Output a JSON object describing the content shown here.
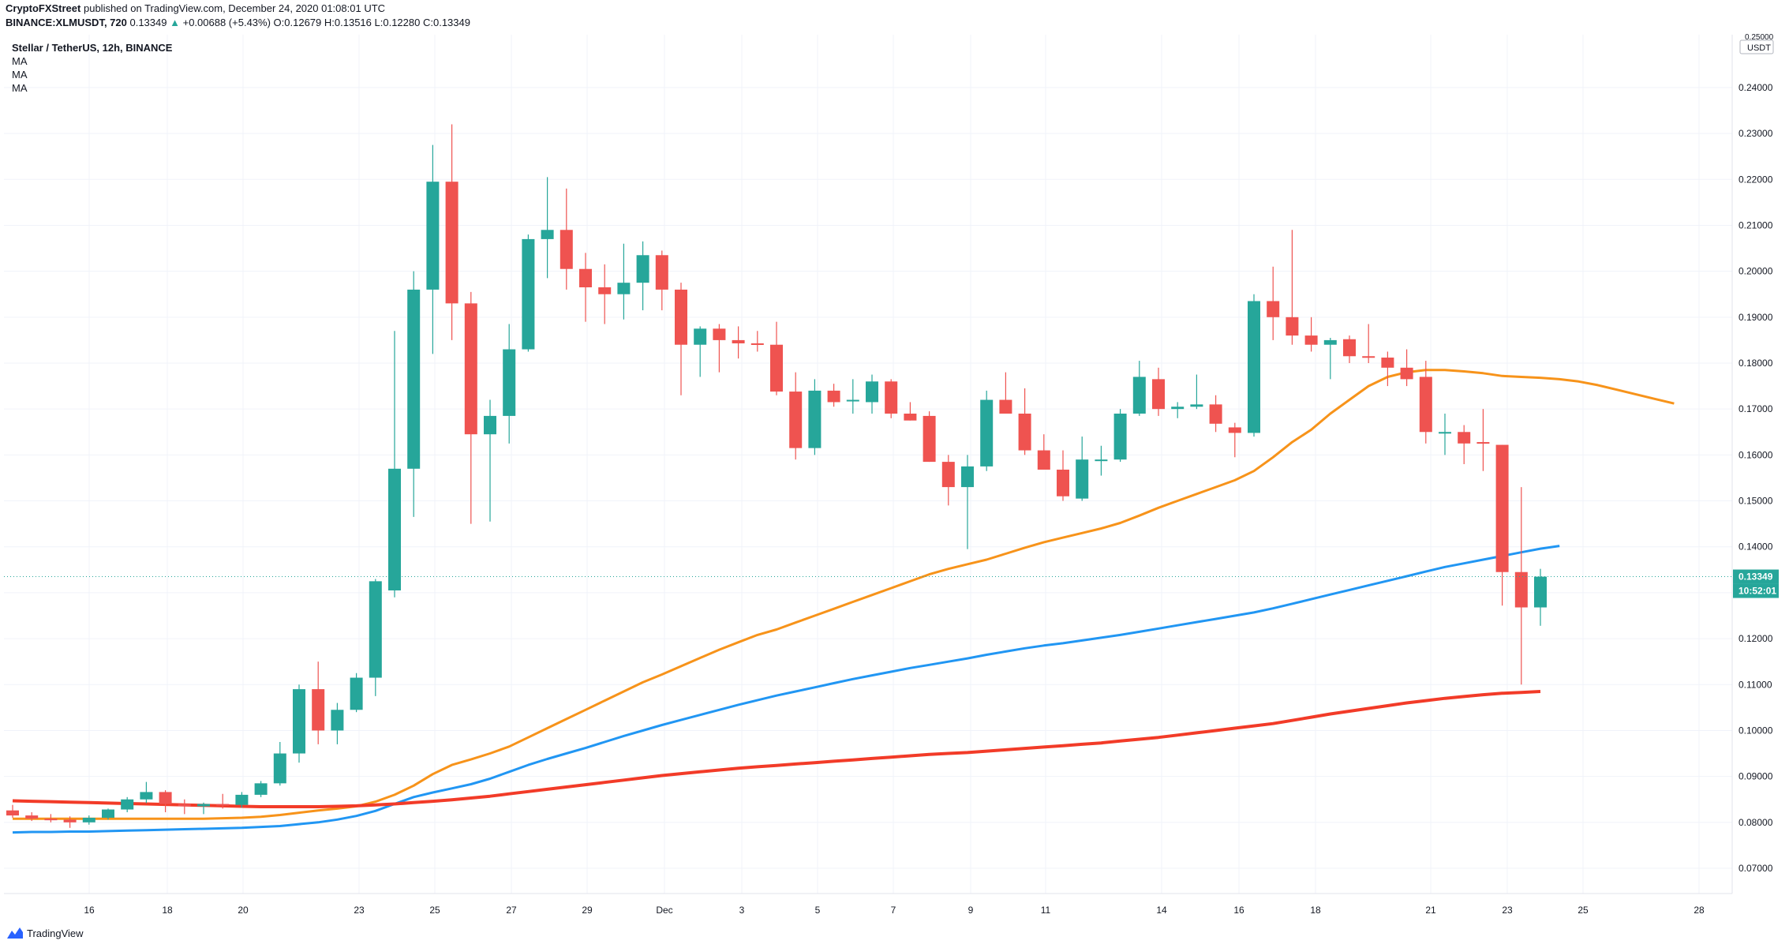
{
  "header": {
    "publisher": "CryptoFXStreet",
    "published_text": "published on TradingView.com, December 24, 2020 01:08:01 UTC",
    "symbol": "BINANCE:XLMUSDT, 720",
    "last": "0.13349",
    "change_arrow": "▲",
    "change": "+0.00688 (+5.43%)",
    "open": "O:0.12679",
    "high": "H:0.13516",
    "low": "L:0.12280",
    "close": "C:0.13349"
  },
  "legend": {
    "title": "Stellar / TetherUS, 12h, BINANCE",
    "ma_labels": [
      "MA",
      "MA",
      "MA"
    ]
  },
  "footer": {
    "brand": "TradingView",
    "logo_icon": "tradingview-logo-icon"
  },
  "colors": {
    "up": "#26a69a",
    "down": "#ef5350",
    "ma_short": "#f7931a",
    "ma_mid": "#2196f3",
    "ma_long": "#f23b28",
    "price_line": "#26a69a",
    "grid": "#f0f3fa"
  },
  "chart_data": {
    "type": "candlestick",
    "x_axis_ticks": [
      "16",
      "18",
      "20",
      "23",
      "25",
      "27",
      "29",
      "Dec",
      "3",
      "5",
      "7",
      "9",
      "11",
      "14",
      "16",
      "18",
      "21",
      "23",
      "25",
      "28"
    ],
    "y_axis_ticks": [
      "0.07000",
      "0.08000",
      "0.09000",
      "0.10000",
      "0.11000",
      "0.12000",
      "0.13000",
      "0.14000",
      "0.15000",
      "0.16000",
      "0.17000",
      "0.18000",
      "0.19000",
      "0.20000",
      "0.21000",
      "0.22000",
      "0.23000",
      "0.24000"
    ],
    "y_axis_unit": "USDT",
    "y_axis_top_tick": "0.25000",
    "ylim": [
      0.0645,
      0.2515
    ],
    "price_label": "0.13349",
    "countdown_label": "10:52:01",
    "candles": [
      {
        "o": 0.0826,
        "h": 0.0838,
        "l": 0.081,
        "c": 0.0815
      },
      {
        "o": 0.0815,
        "h": 0.0822,
        "l": 0.0803,
        "c": 0.0808
      },
      {
        "o": 0.0808,
        "h": 0.0818,
        "l": 0.08,
        "c": 0.0806
      },
      {
        "o": 0.0806,
        "h": 0.0813,
        "l": 0.0788,
        "c": 0.08
      },
      {
        "o": 0.08,
        "h": 0.0815,
        "l": 0.0795,
        "c": 0.081
      },
      {
        "o": 0.081,
        "h": 0.083,
        "l": 0.0806,
        "c": 0.0828
      },
      {
        "o": 0.0828,
        "h": 0.0855,
        "l": 0.0822,
        "c": 0.085
      },
      {
        "o": 0.085,
        "h": 0.0888,
        "l": 0.0842,
        "c": 0.0866
      },
      {
        "o": 0.0866,
        "h": 0.087,
        "l": 0.0822,
        "c": 0.084
      },
      {
        "o": 0.084,
        "h": 0.085,
        "l": 0.0818,
        "c": 0.0835
      },
      {
        "o": 0.0835,
        "h": 0.0843,
        "l": 0.0818,
        "c": 0.084
      },
      {
        "o": 0.084,
        "h": 0.0862,
        "l": 0.083,
        "c": 0.0838
      },
      {
        "o": 0.0838,
        "h": 0.0866,
        "l": 0.0832,
        "c": 0.086
      },
      {
        "o": 0.086,
        "h": 0.089,
        "l": 0.0855,
        "c": 0.0885
      },
      {
        "o": 0.0885,
        "h": 0.0975,
        "l": 0.088,
        "c": 0.095
      },
      {
        "o": 0.095,
        "h": 0.11,
        "l": 0.093,
        "c": 0.109
      },
      {
        "o": 0.109,
        "h": 0.115,
        "l": 0.097,
        "c": 0.1
      },
      {
        "o": 0.1,
        "h": 0.106,
        "l": 0.097,
        "c": 0.1045
      },
      {
        "o": 0.1045,
        "h": 0.1125,
        "l": 0.104,
        "c": 0.1115
      },
      {
        "o": 0.1115,
        "h": 0.133,
        "l": 0.1075,
        "c": 0.1325
      },
      {
        "o": 0.1305,
        "h": 0.187,
        "l": 0.129,
        "c": 0.157
      },
      {
        "o": 0.157,
        "h": 0.2,
        "l": 0.1465,
        "c": 0.196
      },
      {
        "o": 0.196,
        "h": 0.2275,
        "l": 0.182,
        "c": 0.2195
      },
      {
        "o": 0.2195,
        "h": 0.232,
        "l": 0.185,
        "c": 0.193
      },
      {
        "o": 0.193,
        "h": 0.1955,
        "l": 0.145,
        "c": 0.1645
      },
      {
        "o": 0.1645,
        "h": 0.172,
        "l": 0.1455,
        "c": 0.1685
      },
      {
        "o": 0.1685,
        "h": 0.1885,
        "l": 0.1625,
        "c": 0.183
      },
      {
        "o": 0.183,
        "h": 0.208,
        "l": 0.1825,
        "c": 0.207
      },
      {
        "o": 0.207,
        "h": 0.2205,
        "l": 0.1985,
        "c": 0.209
      },
      {
        "o": 0.209,
        "h": 0.218,
        "l": 0.196,
        "c": 0.2005
      },
      {
        "o": 0.2005,
        "h": 0.204,
        "l": 0.189,
        "c": 0.1965
      },
      {
        "o": 0.1965,
        "h": 0.2015,
        "l": 0.1885,
        "c": 0.195
      },
      {
        "o": 0.195,
        "h": 0.206,
        "l": 0.1895,
        "c": 0.1975
      },
      {
        "o": 0.1975,
        "h": 0.2065,
        "l": 0.1915,
        "c": 0.2035
      },
      {
        "o": 0.2035,
        "h": 0.2045,
        "l": 0.1915,
        "c": 0.196
      },
      {
        "o": 0.196,
        "h": 0.1975,
        "l": 0.173,
        "c": 0.184
      },
      {
        "o": 0.184,
        "h": 0.188,
        "l": 0.177,
        "c": 0.1875
      },
      {
        "o": 0.1875,
        "h": 0.1885,
        "l": 0.178,
        "c": 0.185
      },
      {
        "o": 0.185,
        "h": 0.188,
        "l": 0.181,
        "c": 0.1843
      },
      {
        "o": 0.1843,
        "h": 0.187,
        "l": 0.1825,
        "c": 0.184
      },
      {
        "o": 0.184,
        "h": 0.189,
        "l": 0.173,
        "c": 0.1738
      },
      {
        "o": 0.1738,
        "h": 0.178,
        "l": 0.159,
        "c": 0.1615
      },
      {
        "o": 0.1615,
        "h": 0.1765,
        "l": 0.16,
        "c": 0.174
      },
      {
        "o": 0.174,
        "h": 0.1755,
        "l": 0.1705,
        "c": 0.1715
      },
      {
        "o": 0.1718,
        "h": 0.1765,
        "l": 0.169,
        "c": 0.172
      },
      {
        "o": 0.1715,
        "h": 0.1775,
        "l": 0.169,
        "c": 0.176
      },
      {
        "o": 0.176,
        "h": 0.1765,
        "l": 0.168,
        "c": 0.169
      },
      {
        "o": 0.169,
        "h": 0.1715,
        "l": 0.1675,
        "c": 0.1675
      },
      {
        "o": 0.1685,
        "h": 0.1695,
        "l": 0.1585,
        "c": 0.1585
      },
      {
        "o": 0.1585,
        "h": 0.16,
        "l": 0.149,
        "c": 0.153
      },
      {
        "o": 0.153,
        "h": 0.16,
        "l": 0.1395,
        "c": 0.1575
      },
      {
        "o": 0.1575,
        "h": 0.174,
        "l": 0.1565,
        "c": 0.172
      },
      {
        "o": 0.172,
        "h": 0.178,
        "l": 0.1695,
        "c": 0.169
      },
      {
        "o": 0.169,
        "h": 0.1745,
        "l": 0.16,
        "c": 0.161
      },
      {
        "o": 0.161,
        "h": 0.1645,
        "l": 0.157,
        "c": 0.1568
      },
      {
        "o": 0.1568,
        "h": 0.161,
        "l": 0.15,
        "c": 0.151
      },
      {
        "o": 0.1505,
        "h": 0.164,
        "l": 0.15,
        "c": 0.159
      },
      {
        "o": 0.159,
        "h": 0.162,
        "l": 0.1555,
        "c": 0.159
      },
      {
        "o": 0.159,
        "h": 0.17,
        "l": 0.1585,
        "c": 0.169
      },
      {
        "o": 0.169,
        "h": 0.1805,
        "l": 0.1685,
        "c": 0.177
      },
      {
        "o": 0.1765,
        "h": 0.179,
        "l": 0.1685,
        "c": 0.17
      },
      {
        "o": 0.17,
        "h": 0.1715,
        "l": 0.168,
        "c": 0.1705
      },
      {
        "o": 0.1705,
        "h": 0.1775,
        "l": 0.17,
        "c": 0.171
      },
      {
        "o": 0.171,
        "h": 0.173,
        "l": 0.165,
        "c": 0.1668
      },
      {
        "o": 0.166,
        "h": 0.167,
        "l": 0.1595,
        "c": 0.1648
      },
      {
        "o": 0.1648,
        "h": 0.195,
        "l": 0.164,
        "c": 0.1935
      },
      {
        "o": 0.1935,
        "h": 0.201,
        "l": 0.185,
        "c": 0.19
      },
      {
        "o": 0.19,
        "h": 0.209,
        "l": 0.184,
        "c": 0.186
      },
      {
        "o": 0.186,
        "h": 0.19,
        "l": 0.1825,
        "c": 0.184
      },
      {
        "o": 0.184,
        "h": 0.1855,
        "l": 0.1765,
        "c": 0.185
      },
      {
        "o": 0.1852,
        "h": 0.186,
        "l": 0.18,
        "c": 0.1815
      },
      {
        "o": 0.1815,
        "h": 0.1885,
        "l": 0.18,
        "c": 0.1812
      },
      {
        "o": 0.1812,
        "h": 0.1825,
        "l": 0.175,
        "c": 0.179
      },
      {
        "o": 0.179,
        "h": 0.183,
        "l": 0.175,
        "c": 0.1765
      },
      {
        "o": 0.177,
        "h": 0.1805,
        "l": 0.1625,
        "c": 0.165
      },
      {
        "o": 0.165,
        "h": 0.169,
        "l": 0.16,
        "c": 0.165
      },
      {
        "o": 0.165,
        "h": 0.1665,
        "l": 0.158,
        "c": 0.1625
      },
      {
        "o": 0.1628,
        "h": 0.17,
        "l": 0.1565,
        "c": 0.1625
      },
      {
        "o": 0.1622,
        "h": 0.1622,
        "l": 0.1272,
        "c": 0.1345
      },
      {
        "o": 0.1345,
        "h": 0.153,
        "l": 0.11,
        "c": 0.1268
      },
      {
        "o": 0.1268,
        "h": 0.1352,
        "l": 0.1228,
        "c": 0.1335
      }
    ],
    "series": [
      {
        "color": "#f7931a",
        "values": [
          0.0808,
          0.0808,
          0.0808,
          0.0808,
          0.0808,
          0.0808,
          0.0808,
          0.0808,
          0.0808,
          0.0808,
          0.0808,
          0.0809,
          0.081,
          0.0812,
          0.0816,
          0.0821,
          0.0826,
          0.083,
          0.0835,
          0.0845,
          0.086,
          0.088,
          0.0905,
          0.0925,
          0.0937,
          0.095,
          0.0965,
          0.0985,
          0.1005,
          0.1025,
          0.1045,
          0.1065,
          0.1085,
          0.1105,
          0.1122,
          0.114,
          0.1158,
          0.1176,
          0.1192,
          0.1208,
          0.122,
          0.1235,
          0.125,
          0.1265,
          0.128,
          0.1295,
          0.131,
          0.1325,
          0.134,
          0.1352,
          0.1362,
          0.1372,
          0.1385,
          0.1398,
          0.141,
          0.142,
          0.143,
          0.144,
          0.1452,
          0.1468,
          0.1485,
          0.15,
          0.1515,
          0.153,
          0.1545,
          0.1565,
          0.1595,
          0.1628,
          0.1655,
          0.169,
          0.172,
          0.175,
          0.177,
          0.178,
          0.1785,
          0.1785,
          0.1782,
          0.1778,
          0.1772,
          0.177,
          0.1768,
          0.1765,
          0.176,
          0.1752,
          0.1742,
          0.1732,
          0.1722,
          0.1712
        ]
      },
      {
        "color": "#2196f3",
        "values": [
          0.0778,
          0.0779,
          0.0779,
          0.078,
          0.078,
          0.0781,
          0.0782,
          0.0783,
          0.0784,
          0.0785,
          0.0786,
          0.0787,
          0.0788,
          0.079,
          0.0792,
          0.0796,
          0.08,
          0.0806,
          0.0814,
          0.0825,
          0.084,
          0.0855,
          0.0865,
          0.0874,
          0.0883,
          0.0895,
          0.091,
          0.0925,
          0.0938,
          0.095,
          0.0962,
          0.0975,
          0.0988,
          0.1,
          0.1012,
          0.1023,
          0.1034,
          0.1045,
          0.1056,
          0.1066,
          0.1076,
          0.1085,
          0.1094,
          0.1103,
          0.1112,
          0.112,
          0.1128,
          0.1136,
          0.1143,
          0.115,
          0.1157,
          0.1165,
          0.1172,
          0.1179,
          0.1185,
          0.119,
          0.1196,
          0.1202,
          0.1208,
          0.1215,
          0.1222,
          0.1229,
          0.1236,
          0.1243,
          0.125,
          0.1257,
          0.1266,
          0.1276,
          0.1286,
          0.1296,
          0.1306,
          0.1316,
          0.1326,
          0.1336,
          0.1346,
          0.1356,
          0.1364,
          0.1372,
          0.138,
          0.1388,
          0.1396,
          0.1402
        ]
      },
      {
        "color": "#f23b28",
        "values": [
          0.0847,
          0.0846,
          0.0845,
          0.0844,
          0.0843,
          0.0842,
          0.0841,
          0.084,
          0.0839,
          0.0838,
          0.0837,
          0.0836,
          0.0835,
          0.0834,
          0.0834,
          0.0834,
          0.0834,
          0.0835,
          0.0836,
          0.0838,
          0.084,
          0.0843,
          0.0846,
          0.0849,
          0.0853,
          0.0857,
          0.0862,
          0.0867,
          0.0872,
          0.0877,
          0.0882,
          0.0887,
          0.0892,
          0.0897,
          0.0902,
          0.0906,
          0.091,
          0.0914,
          0.0918,
          0.0921,
          0.0924,
          0.0927,
          0.093,
          0.0933,
          0.0936,
          0.0939,
          0.0942,
          0.0945,
          0.0948,
          0.095,
          0.0952,
          0.0955,
          0.0958,
          0.0961,
          0.0964,
          0.0967,
          0.097,
          0.0973,
          0.0977,
          0.0981,
          0.0985,
          0.099,
          0.0995,
          0.1,
          0.1005,
          0.101,
          0.1015,
          0.1022,
          0.1029,
          0.1036,
          0.1042,
          0.1048,
          0.1054,
          0.106,
          0.1065,
          0.107,
          0.1074,
          0.1078,
          0.1081,
          0.1083,
          0.1085
        ]
      }
    ]
  }
}
